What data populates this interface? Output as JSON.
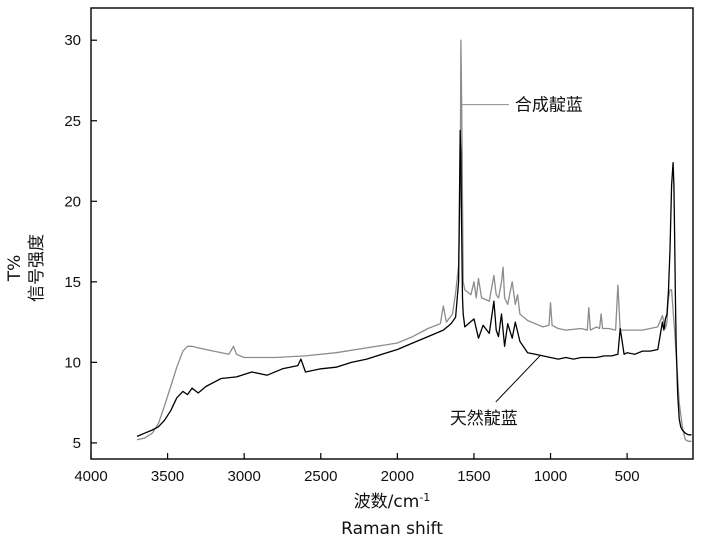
{
  "chart_data": {
    "type": "line",
    "xlabel_line1": "波数/cm",
    "xlabel_sup": "-1",
    "xlabel_line2": "Raman shift",
    "ylabel_line1": "T%",
    "ylabel_line2": "信号强度",
    "xlim": [
      4000,
      70
    ],
    "ylim": [
      4,
      32
    ],
    "x_ticks": [
      4000,
      3500,
      3000,
      2500,
      2000,
      1500,
      1000,
      500
    ],
    "y_ticks": [
      5,
      10,
      15,
      20,
      25,
      30
    ],
    "grid": false,
    "series": [
      {
        "name": "合成靛蓝",
        "color": "#8c8c8c",
        "x": [
          3700,
          3650,
          3600,
          3560,
          3520,
          3480,
          3440,
          3400,
          3370,
          3340,
          3300,
          3200,
          3100,
          3070,
          3050,
          3000,
          2800,
          2600,
          2400,
          2200,
          2000,
          1900,
          1800,
          1720,
          1700,
          1680,
          1640,
          1620,
          1600,
          1590,
          1585,
          1580,
          1575,
          1570,
          1560,
          1520,
          1500,
          1485,
          1470,
          1450,
          1400,
          1370,
          1355,
          1340,
          1320,
          1310,
          1300,
          1280,
          1250,
          1230,
          1215,
          1200,
          1150,
          1100,
          1050,
          1010,
          1000,
          990,
          950,
          900,
          800,
          760,
          750,
          740,
          700,
          680,
          670,
          660,
          620,
          575,
          560,
          545,
          500,
          400,
          300,
          270,
          250,
          240,
          235,
          230,
          220,
          210,
          200,
          190,
          170,
          160,
          140,
          120,
          100,
          80
        ],
        "y": [
          5.2,
          5.3,
          5.6,
          6.2,
          7.3,
          8.5,
          9.7,
          10.7,
          11.0,
          11.0,
          10.9,
          10.7,
          10.5,
          11.0,
          10.5,
          10.3,
          10.3,
          10.4,
          10.6,
          10.9,
          11.2,
          11.6,
          12.1,
          12.4,
          13.5,
          12.5,
          13.0,
          14.3,
          16.0,
          21.0,
          30.0,
          26.0,
          20.0,
          15.0,
          14.5,
          14.2,
          15.0,
          14.0,
          15.2,
          14.0,
          13.8,
          15.4,
          14.2,
          14.0,
          15.0,
          15.9,
          14.0,
          13.6,
          15.0,
          13.6,
          14.2,
          13.0,
          12.6,
          12.4,
          12.2,
          12.3,
          13.7,
          12.3,
          12.1,
          12.0,
          12.1,
          12.0,
          13.4,
          12.0,
          12.2,
          12.1,
          13.0,
          12.1,
          12.1,
          12.0,
          14.8,
          12.0,
          12.0,
          12.0,
          12.2,
          12.9,
          12.1,
          12.5,
          13.5,
          14.0,
          14.5,
          14.5,
          13.2,
          12.0,
          9.0,
          7.5,
          6.0,
          5.2,
          5.1,
          5.1
        ]
      },
      {
        "name": "天然靛蓝",
        "color": "#000000",
        "x": [
          3700,
          3650,
          3600,
          3560,
          3520,
          3480,
          3440,
          3400,
          3370,
          3340,
          3300,
          3250,
          3150,
          3050,
          2950,
          2850,
          2750,
          2650,
          2630,
          2600,
          2500,
          2400,
          2300,
          2200,
          2100,
          2000,
          1900,
          1800,
          1700,
          1650,
          1620,
          1600,
          1590,
          1585,
          1580,
          1575,
          1570,
          1560,
          1500,
          1470,
          1440,
          1400,
          1370,
          1355,
          1340,
          1320,
          1300,
          1280,
          1250,
          1230,
          1200,
          1150,
          1100,
          1050,
          1000,
          950,
          900,
          850,
          800,
          750,
          700,
          650,
          600,
          560,
          545,
          520,
          500,
          450,
          400,
          350,
          300,
          270,
          260,
          250,
          240,
          230,
          220,
          210,
          200,
          195,
          190,
          185,
          180,
          170,
          160,
          150,
          140,
          120,
          100,
          80
        ],
        "y": [
          5.4,
          5.6,
          5.8,
          6.0,
          6.4,
          7.0,
          7.8,
          8.2,
          8.0,
          8.4,
          8.1,
          8.5,
          9.0,
          9.1,
          9.4,
          9.2,
          9.6,
          9.8,
          10.2,
          9.4,
          9.6,
          9.7,
          10.0,
          10.2,
          10.5,
          10.8,
          11.2,
          11.6,
          12.0,
          12.4,
          12.8,
          15.0,
          24.4,
          23.0,
          18.0,
          14.0,
          13.0,
          12.2,
          12.7,
          11.5,
          12.3,
          11.8,
          13.8,
          12.0,
          11.6,
          13.0,
          11.0,
          12.4,
          11.5,
          12.5,
          11.3,
          10.6,
          10.5,
          10.4,
          10.3,
          10.2,
          10.3,
          10.2,
          10.3,
          10.3,
          10.3,
          10.4,
          10.4,
          10.5,
          12.1,
          10.5,
          10.6,
          10.5,
          10.7,
          10.7,
          10.8,
          12.5,
          12.0,
          12.7,
          13.0,
          14.5,
          17.0,
          21.0,
          22.4,
          21.0,
          18.0,
          14.0,
          11.0,
          8.0,
          6.5,
          6.0,
          5.8,
          5.6,
          5.5,
          5.5
        ]
      }
    ],
    "annotations": [
      {
        "text": "合成靛蓝",
        "series": 0,
        "at_x": 1585,
        "at_y": 26.0
      },
      {
        "text": "天然靛蓝",
        "series": 1,
        "at_x": 1070,
        "at_y": 10.4
      }
    ]
  }
}
